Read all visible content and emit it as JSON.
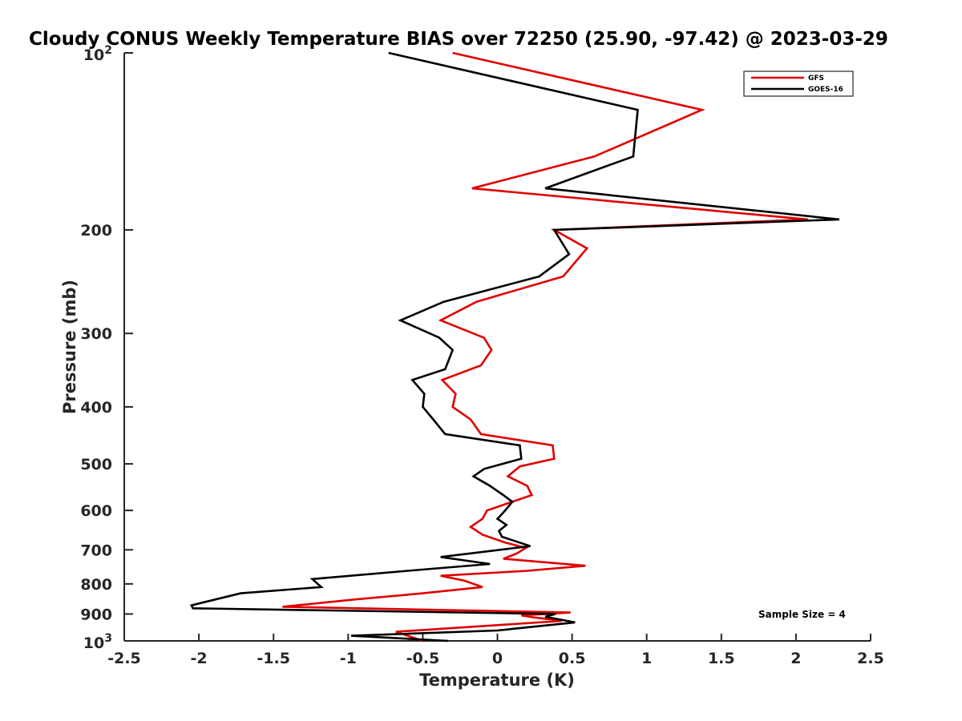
{
  "chart_data": {
    "type": "line",
    "title": "Cloudy CONUS Weekly Temperature BIAS over 72250 (25.90, -97.42) @ 2023-03-29",
    "xlabel": "Temperature (K)",
    "ylabel": "Pressure (mb)",
    "xlim": [
      -2.5,
      2.5
    ],
    "ylim": [
      100,
      1000
    ],
    "yscale": "log",
    "y_reversed": true,
    "grid": false,
    "legend_position": "top-right",
    "x_ticks": [
      "-2.5",
      "-2",
      "-1.5",
      "-1",
      "-0.5",
      "0",
      "0.5",
      "1",
      "1.5",
      "2",
      "2.5"
    ],
    "y_ticks": [
      {
        "value": 100,
        "base": "10",
        "exp": "2"
      },
      {
        "value": 200,
        "label": "200"
      },
      {
        "value": 300,
        "label": "300"
      },
      {
        "value": 400,
        "label": "400"
      },
      {
        "value": 500,
        "label": "500"
      },
      {
        "value": 600,
        "label": "600"
      },
      {
        "value": 700,
        "label": "700"
      },
      {
        "value": 800,
        "label": "800"
      },
      {
        "value": 900,
        "label": "900"
      },
      {
        "value": 1000,
        "base": "10",
        "exp": "3"
      }
    ],
    "annotation": "Sample Size = 4",
    "series": [
      {
        "name": "GFS",
        "color": "#e00000",
        "points": [
          [
            -0.3,
            100
          ],
          [
            1.37,
            125
          ],
          [
            0.65,
            150
          ],
          [
            -0.17,
            170
          ],
          [
            2.08,
            192
          ],
          [
            0.38,
            200
          ],
          [
            0.6,
            215
          ],
          [
            0.44,
            240
          ],
          [
            -0.14,
            265
          ],
          [
            -0.38,
            285
          ],
          [
            -0.09,
            305
          ],
          [
            -0.04,
            320
          ],
          [
            -0.11,
            340
          ],
          [
            -0.37,
            360
          ],
          [
            -0.28,
            380
          ],
          [
            -0.3,
            400
          ],
          [
            -0.18,
            420
          ],
          [
            -0.11,
            445
          ],
          [
            0.37,
            465
          ],
          [
            0.38,
            490
          ],
          [
            0.15,
            505
          ],
          [
            0.07,
            525
          ],
          [
            0.2,
            545
          ],
          [
            0.23,
            565
          ],
          [
            -0.07,
            600
          ],
          [
            -0.1,
            620
          ],
          [
            -0.18,
            640
          ],
          [
            -0.1,
            660
          ],
          [
            0.05,
            680
          ],
          [
            0.19,
            695
          ],
          [
            0.13,
            710
          ],
          [
            0.04,
            725
          ],
          [
            0.59,
            745
          ],
          [
            0.2,
            760
          ],
          [
            -0.38,
            775
          ],
          [
            -0.22,
            790
          ],
          [
            -0.1,
            810
          ],
          [
            -0.5,
            830
          ],
          [
            -0.95,
            850
          ],
          [
            -1.44,
            875
          ],
          [
            0.49,
            895
          ],
          [
            0.16,
            905
          ],
          [
            0.24,
            912
          ],
          [
            0.43,
            925
          ],
          [
            -0.68,
            965
          ],
          [
            -0.5,
            1000
          ]
        ]
      },
      {
        "name": "GOES-16",
        "color": "#000000",
        "points": [
          [
            -0.73,
            100
          ],
          [
            0.94,
            125
          ],
          [
            0.91,
            150
          ],
          [
            0.32,
            170
          ],
          [
            2.29,
            192
          ],
          [
            0.38,
            200
          ],
          [
            0.48,
            220
          ],
          [
            0.28,
            240
          ],
          [
            -0.36,
            265
          ],
          [
            -0.65,
            285
          ],
          [
            -0.39,
            305
          ],
          [
            -0.3,
            320
          ],
          [
            -0.35,
            345
          ],
          [
            -0.57,
            360
          ],
          [
            -0.49,
            380
          ],
          [
            -0.5,
            400
          ],
          [
            -0.43,
            420
          ],
          [
            -0.35,
            445
          ],
          [
            0.15,
            465
          ],
          [
            0.16,
            490
          ],
          [
            -0.09,
            510
          ],
          [
            -0.16,
            525
          ],
          [
            -0.05,
            545
          ],
          [
            0.04,
            565
          ],
          [
            0.1,
            580
          ],
          [
            0.04,
            605
          ],
          [
            0.0,
            620
          ],
          [
            0.06,
            635
          ],
          [
            0.01,
            650
          ],
          [
            0.03,
            665
          ],
          [
            0.22,
            690
          ],
          [
            -0.38,
            720
          ],
          [
            -0.05,
            740
          ],
          [
            -0.6,
            760
          ],
          [
            -1.24,
            785
          ],
          [
            -1.18,
            810
          ],
          [
            -1.72,
            830
          ],
          [
            -2.05,
            870
          ],
          [
            -2.04,
            880
          ],
          [
            0.39,
            900
          ],
          [
            0.32,
            910
          ],
          [
            0.52,
            930
          ],
          [
            0.0,
            960
          ],
          [
            -0.98,
            980
          ],
          [
            -0.33,
            1000
          ]
        ]
      }
    ]
  }
}
